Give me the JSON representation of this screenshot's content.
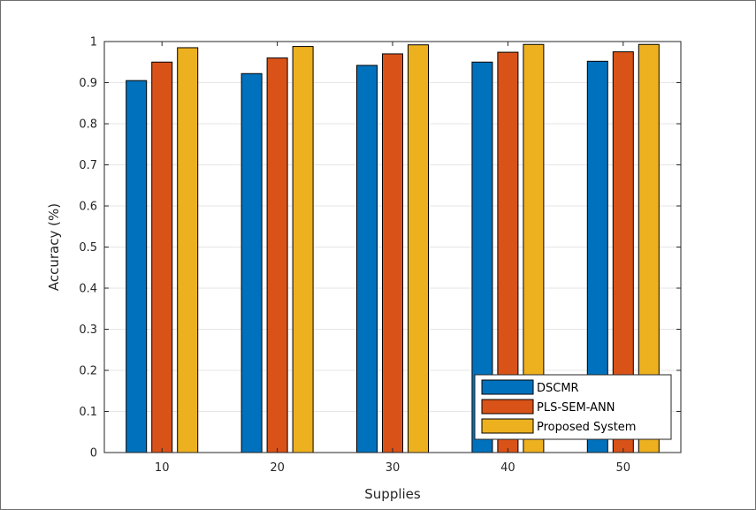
{
  "chart_data": {
    "type": "bar",
    "categories": [
      "10",
      "20",
      "30",
      "40",
      "50"
    ],
    "series": [
      {
        "name": "DSCMR",
        "color": "#0072BD",
        "values": [
          0.905,
          0.922,
          0.942,
          0.95,
          0.952
        ]
      },
      {
        "name": "PLS-SEM-ANN",
        "color": "#D95319",
        "values": [
          0.95,
          0.96,
          0.97,
          0.974,
          0.975
        ]
      },
      {
        "name": "Proposed System",
        "color": "#EDB120",
        "values": [
          0.985,
          0.988,
          0.992,
          0.993,
          0.993
        ]
      }
    ],
    "xlabel": "Supplies",
    "ylabel": "Accuracy (%)",
    "ylim": [
      0,
      1
    ],
    "yticks": [
      "0",
      "0.1",
      "0.2",
      "0.3",
      "0.4",
      "0.5",
      "0.6",
      "0.7",
      "0.8",
      "0.9",
      "1"
    ],
    "grid": true,
    "legend_position": "bottom-right"
  }
}
